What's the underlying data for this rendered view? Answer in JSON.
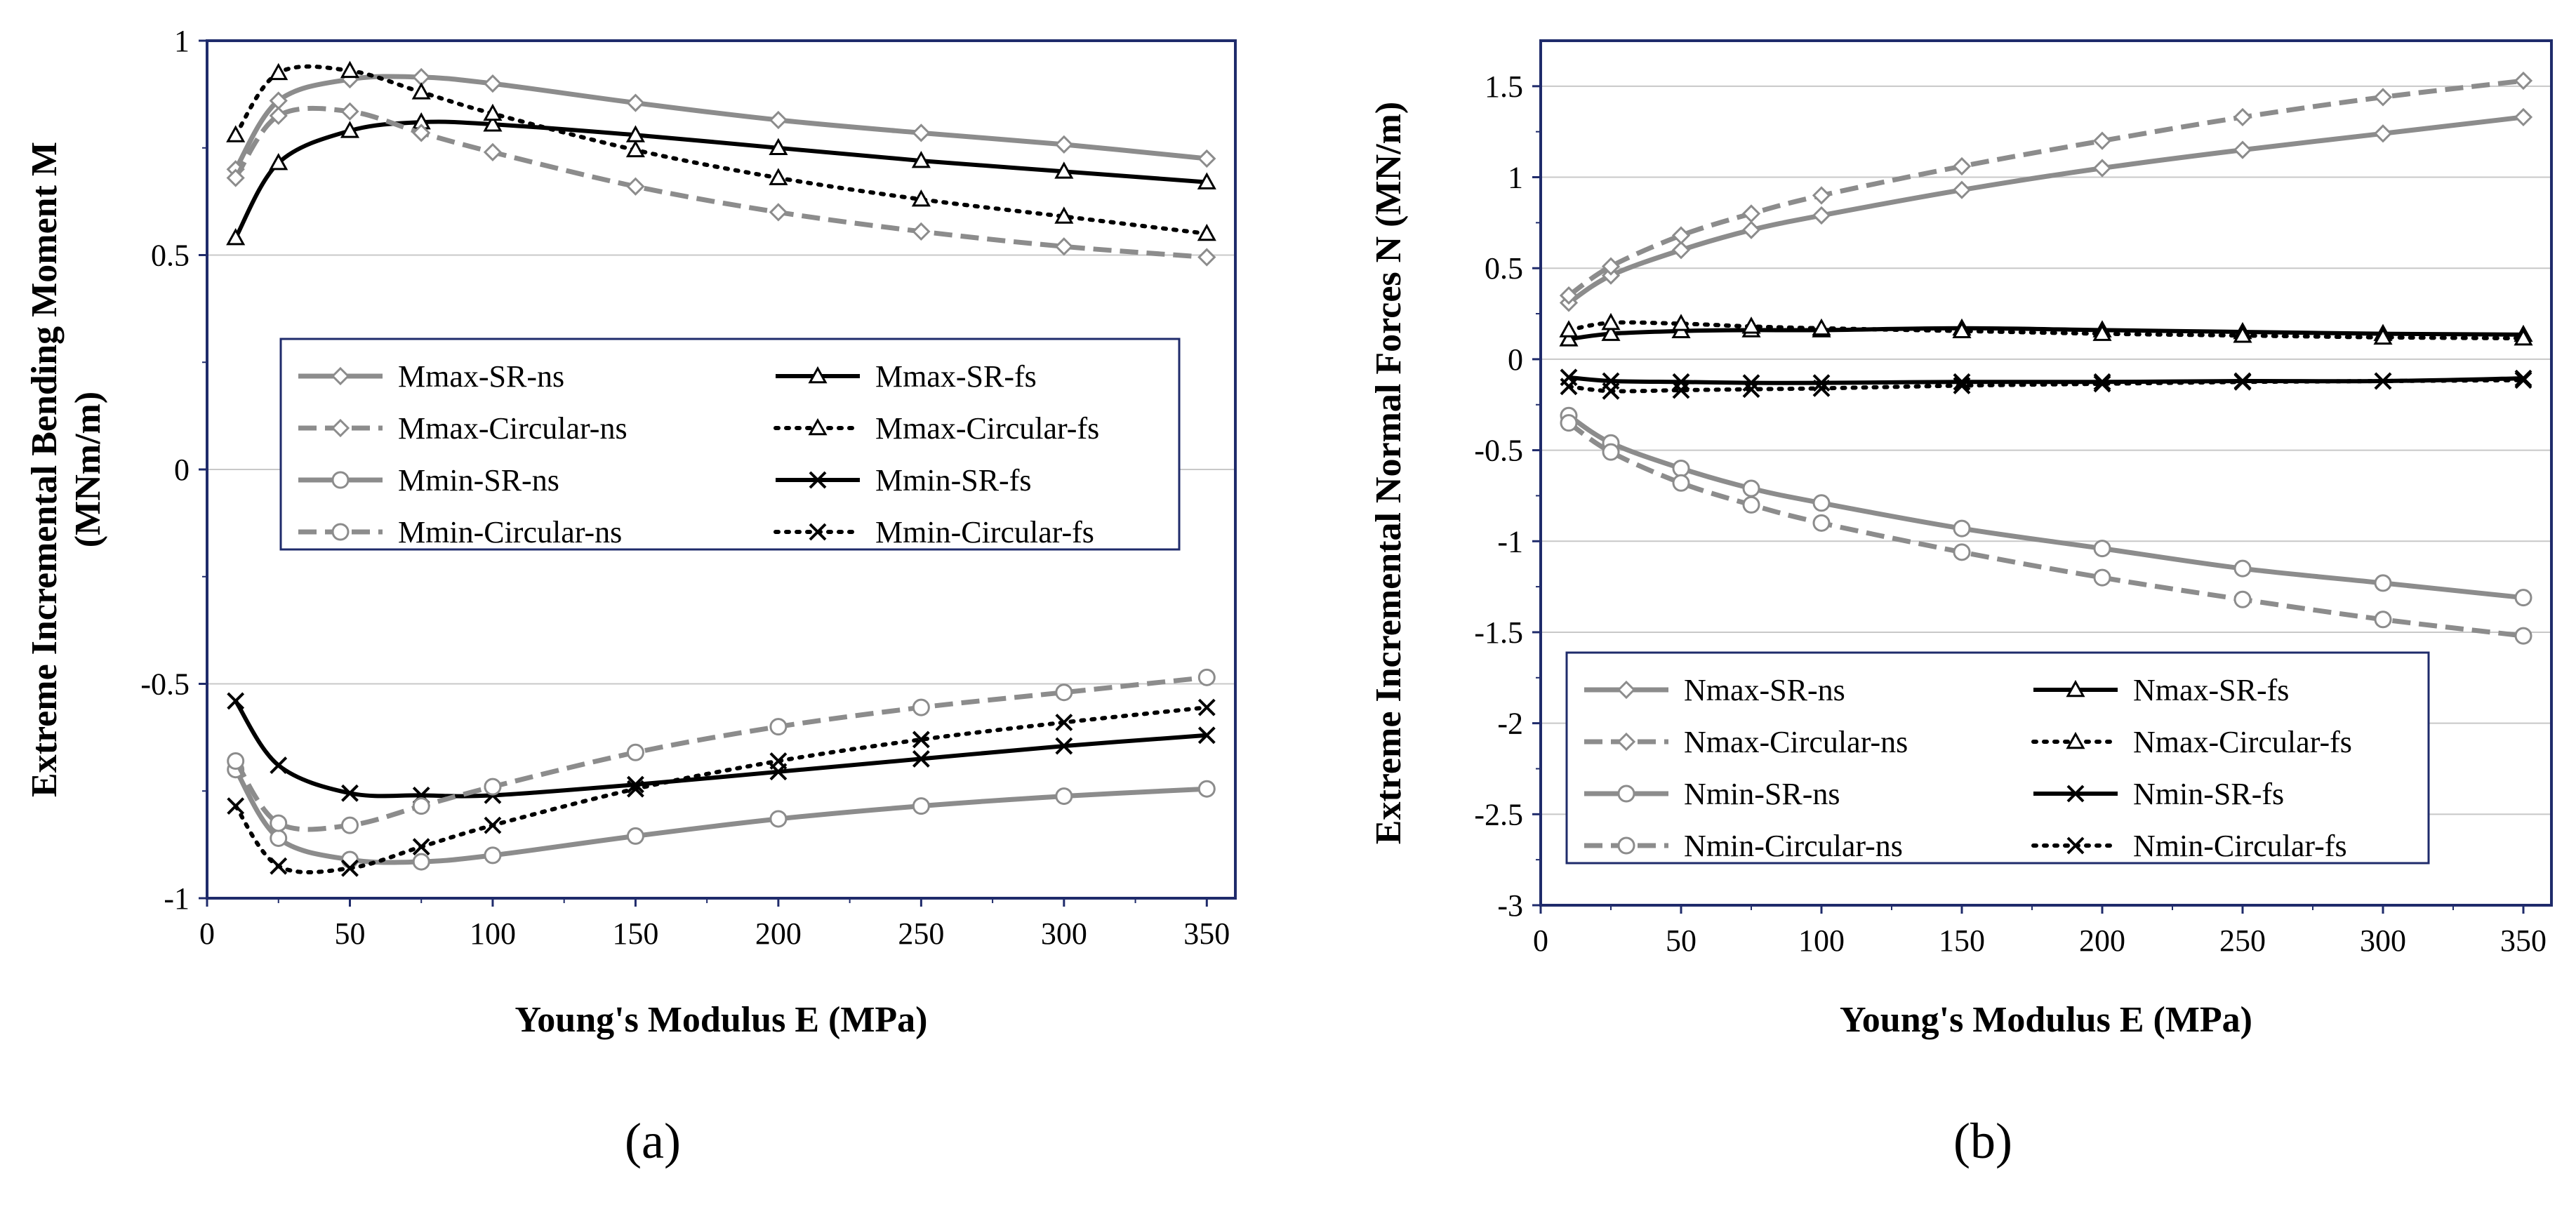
{
  "figure": {
    "panel_a_label": "(a)",
    "panel_b_label": "(b)"
  },
  "colors": {
    "gray": "#8c8c8c",
    "black": "#000000",
    "frame": "#1f2b6b",
    "grid": "#c8c8c8"
  },
  "chart_data": [
    {
      "id": "a",
      "type": "line",
      "title": "",
      "xlabel": "Young's Modulus E (MPa)",
      "ylabel_line1": "Extreme  Incremental Bending Moment M",
      "ylabel_line2": "(MNm/m)",
      "xlim": [
        0,
        360
      ],
      "ylim": [
        -1,
        1
      ],
      "xticks": [
        0,
        50,
        100,
        150,
        200,
        250,
        300,
        350
      ],
      "xtick_labels": [
        "0",
        "50",
        "100",
        "150",
        "200",
        "250",
        "300",
        "350"
      ],
      "yticks": [
        -1,
        -0.5,
        0,
        0.5,
        1
      ],
      "ytick_labels": [
        "-1",
        "-0.5",
        "0",
        "0.5",
        "1"
      ],
      "grid": "horizontal",
      "legend_position": "center",
      "x": [
        10,
        25,
        50,
        75,
        100,
        150,
        200,
        250,
        300,
        350
      ],
      "series": [
        {
          "name": "Mmax-SR-ns",
          "color": "gray",
          "dash": "solid",
          "marker": "diamond",
          "values": [
            0.7,
            0.86,
            0.91,
            0.915,
            0.9,
            0.855,
            0.815,
            0.785,
            0.758,
            0.725
          ]
        },
        {
          "name": "Mmax-SR-fs",
          "color": "black",
          "dash": "solid",
          "marker": "triangle",
          "values": [
            0.54,
            0.715,
            0.79,
            0.81,
            0.805,
            0.78,
            0.75,
            0.72,
            0.695,
            0.67
          ]
        },
        {
          "name": "Mmax-Circular-ns",
          "color": "gray",
          "dash": "dashed",
          "marker": "diamond",
          "values": [
            0.68,
            0.825,
            0.835,
            0.785,
            0.74,
            0.66,
            0.6,
            0.555,
            0.52,
            0.495
          ]
        },
        {
          "name": "Mmax-Circular-fs",
          "color": "black",
          "dash": "dotted",
          "marker": "triangle",
          "values": [
            0.78,
            0.925,
            0.93,
            0.88,
            0.83,
            0.745,
            0.68,
            0.63,
            0.59,
            0.55
          ]
        },
        {
          "name": "Mmin-SR-ns",
          "color": "gray",
          "dash": "solid",
          "marker": "circle",
          "values": [
            -0.7,
            -0.86,
            -0.91,
            -0.915,
            -0.9,
            -0.855,
            -0.815,
            -0.785,
            -0.762,
            -0.745
          ]
        },
        {
          "name": "Mmin-SR-fs",
          "color": "black",
          "dash": "solid",
          "marker": "x",
          "values": [
            -0.54,
            -0.69,
            -0.755,
            -0.76,
            -0.76,
            -0.735,
            -0.705,
            -0.675,
            -0.645,
            -0.62
          ]
        },
        {
          "name": "Mmin-Circular-ns",
          "color": "gray",
          "dash": "dashed",
          "marker": "circle",
          "values": [
            -0.68,
            -0.825,
            -0.83,
            -0.785,
            -0.74,
            -0.66,
            -0.6,
            -0.555,
            -0.52,
            -0.485
          ]
        },
        {
          "name": "Mmin-Circular-fs",
          "color": "black",
          "dash": "dotted",
          "marker": "x",
          "values": [
            -0.785,
            -0.925,
            -0.93,
            -0.88,
            -0.83,
            -0.745,
            -0.68,
            -0.63,
            -0.59,
            -0.555
          ]
        }
      ]
    },
    {
      "id": "b",
      "type": "line",
      "title": "",
      "xlabel": "Young's Modulus E (MPa)",
      "ylabel_line1": "Extreme Incremental Normal Forces N (MN/m)",
      "ylabel_line2": "",
      "xlim": [
        0,
        360
      ],
      "ylim": [
        -3,
        1.75
      ],
      "xticks": [
        0,
        50,
        100,
        150,
        200,
        250,
        300,
        350
      ],
      "xtick_labels": [
        "0",
        "50",
        "100",
        "150",
        "200",
        "250",
        "300",
        "350"
      ],
      "yticks": [
        -3,
        -2.5,
        -2,
        -1.5,
        -1,
        -0.5,
        0,
        0.5,
        1,
        1.5
      ],
      "ytick_labels": [
        "-3",
        "-2.5",
        "-2",
        "-1.5",
        "-1",
        "-0.5",
        "0",
        "0.5",
        "1",
        "1.5"
      ],
      "grid": "horizontal",
      "legend_position": "bottom",
      "x": [
        10,
        25,
        50,
        75,
        100,
        150,
        200,
        250,
        300,
        350
      ],
      "series": [
        {
          "name": "Nmax-SR-ns",
          "color": "gray",
          "dash": "solid",
          "marker": "diamond",
          "values": [
            0.31,
            0.46,
            0.6,
            0.71,
            0.79,
            0.93,
            1.05,
            1.15,
            1.24,
            1.33
          ]
        },
        {
          "name": "Nmax-SR-fs",
          "color": "black",
          "dash": "solid",
          "marker": "triangle",
          "values": [
            0.11,
            0.14,
            0.155,
            0.16,
            0.16,
            0.17,
            0.16,
            0.15,
            0.14,
            0.135
          ]
        },
        {
          "name": "Nmax-Circular-ns",
          "color": "gray",
          "dash": "dashed",
          "marker": "diamond",
          "values": [
            0.35,
            0.51,
            0.68,
            0.8,
            0.9,
            1.06,
            1.2,
            1.33,
            1.44,
            1.53
          ]
        },
        {
          "name": "Nmax-Circular-fs",
          "color": "black",
          "dash": "dotted",
          "marker": "triangle",
          "values": [
            0.16,
            0.2,
            0.195,
            0.18,
            0.17,
            0.155,
            0.14,
            0.13,
            0.12,
            0.115
          ]
        },
        {
          "name": "Nmin-SR-ns",
          "color": "gray",
          "dash": "solid",
          "marker": "circle",
          "values": [
            -0.31,
            -0.46,
            -0.6,
            -0.71,
            -0.79,
            -0.93,
            -1.04,
            -1.15,
            -1.23,
            -1.31
          ]
        },
        {
          "name": "Nmin-SR-fs",
          "color": "black",
          "dash": "solid",
          "marker": "x",
          "values": [
            -0.1,
            -0.12,
            -0.125,
            -0.13,
            -0.13,
            -0.125,
            -0.125,
            -0.12,
            -0.12,
            -0.105
          ]
        },
        {
          "name": "Nmin-Circular-ns",
          "color": "gray",
          "dash": "dashed",
          "marker": "circle",
          "values": [
            -0.35,
            -0.51,
            -0.68,
            -0.8,
            -0.9,
            -1.06,
            -1.2,
            -1.32,
            -1.43,
            -1.52
          ]
        },
        {
          "name": "Nmin-Circular-fs",
          "color": "black",
          "dash": "dotted",
          "marker": "x",
          "values": [
            -0.15,
            -0.175,
            -0.17,
            -0.165,
            -0.16,
            -0.145,
            -0.135,
            -0.125,
            -0.12,
            -0.115
          ]
        }
      ]
    }
  ]
}
